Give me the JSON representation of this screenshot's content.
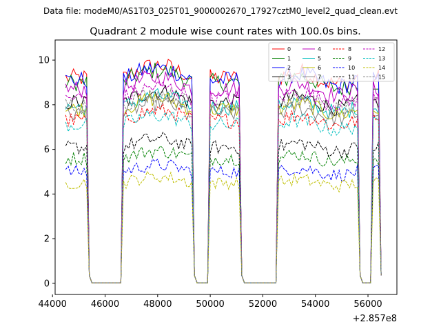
{
  "chart_data": {
    "type": "line",
    "suptitle": "Data file: modeM0/AS1T03_025T01_9000002670_17927cztM0_level2_quad_clean.evt",
    "title": "Quadrant 2 module wise count rates with 100.0s bins.",
    "xlabel": "",
    "ylabel": "",
    "x_offset_label": "+2.857e8",
    "xlim": [
      44100,
      57100
    ],
    "ylim": [
      -0.5,
      10.9
    ],
    "x_ticks": [
      44000,
      46000,
      48000,
      50000,
      52000,
      54000,
      56000
    ],
    "x_tick_labels": [
      "44000",
      "46000",
      "48000",
      "50000",
      "52000",
      "54000",
      "56000"
    ],
    "y_ticks": [
      0,
      2,
      4,
      6,
      8,
      10
    ],
    "y_tick_labels": [
      "0",
      "2",
      "4",
      "6",
      "8",
      "10"
    ],
    "bin_size": 100,
    "legend_position": "top-right",
    "gti_segments": [
      {
        "start": 44500,
        "end": 45300
      },
      {
        "start": 46700,
        "end": 49300
      },
      {
        "start": 50000,
        "end": 51100
      },
      {
        "start": 52600,
        "end": 55600
      },
      {
        "start": 56200,
        "end": 56400
      }
    ],
    "series": [
      {
        "name": "0",
        "color": "#ff0000",
        "dash": "solid",
        "level": 9.2
      },
      {
        "name": "1",
        "color": "#008000",
        "dash": "solid",
        "level": 9.0
      },
      {
        "name": "2",
        "color": "#0000ff",
        "dash": "solid",
        "level": 9.1
      },
      {
        "name": "3",
        "color": "#000000",
        "dash": "solid",
        "level": 8.1
      },
      {
        "name": "4",
        "color": "#bf00bf",
        "dash": "solid",
        "level": 8.7
      },
      {
        "name": "5",
        "color": "#00bfbf",
        "dash": "solid",
        "level": 7.9
      },
      {
        "name": "6",
        "color": "#bfbf00",
        "dash": "solid",
        "level": 7.8
      },
      {
        "name": "7",
        "color": "#808080",
        "dash": "solid",
        "level": 7.6
      },
      {
        "name": "8",
        "color": "#ff0000",
        "dash": "dashed",
        "level": 7.3
      },
      {
        "name": "9",
        "color": "#008000",
        "dash": "dashed",
        "level": 5.6
      },
      {
        "name": "10",
        "color": "#0000ff",
        "dash": "dashed",
        "level": 5.0
      },
      {
        "name": "11",
        "color": "#000000",
        "dash": "dashed",
        "level": 6.1
      },
      {
        "name": "12",
        "color": "#bf00bf",
        "dash": "dashed",
        "level": 8.3
      },
      {
        "name": "13",
        "color": "#00bfbf",
        "dash": "dashed",
        "level": 7.1
      },
      {
        "name": "14",
        "color": "#bfbf00",
        "dash": "dashed",
        "level": 4.5
      },
      {
        "name": "15",
        "color": "#808080",
        "dash": "dashed",
        "level": 8.0
      }
    ]
  }
}
